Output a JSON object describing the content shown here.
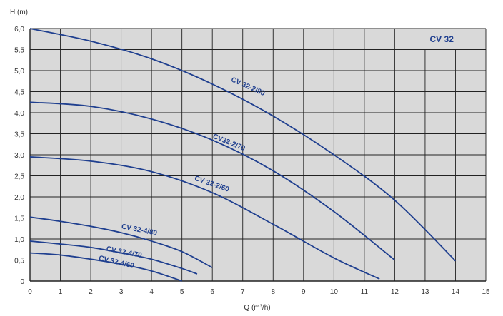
{
  "chart_data": {
    "type": "line",
    "xlabel": "Q (m³/h)",
    "ylabel": "H (m)",
    "xlim": [
      0,
      15
    ],
    "ylim": [
      0,
      6
    ],
    "x_ticks": [
      "0",
      "1",
      "2",
      "3",
      "4",
      "5",
      "6",
      "7",
      "8",
      "9",
      "10",
      "11",
      "12",
      "13",
      "14",
      "15"
    ],
    "y_ticks": [
      "0",
      "0,5",
      "1,0",
      "1,5",
      "2,0",
      "2,5",
      "3,0",
      "3,5",
      "4,0",
      "4,5",
      "5,0",
      "5,5",
      "6,0"
    ],
    "grid": true,
    "box_label": "CV 32",
    "colors": {
      "plot_bg": "#d9d9d9",
      "grid": "#222222",
      "curve": "#1f3f8f",
      "text": "#333333"
    },
    "series": [
      {
        "name": "CV 32-2/80",
        "x": [
          0,
          2,
          4,
          6,
          8,
          10,
          12,
          14
        ],
        "y": [
          6.0,
          5.7,
          5.28,
          4.68,
          3.92,
          3.0,
          1.92,
          0.48
        ]
      },
      {
        "name": "CV32-2/70",
        "x": [
          0,
          2,
          4,
          6,
          8,
          10,
          12
        ],
        "y": [
          4.25,
          4.15,
          3.85,
          3.35,
          2.62,
          1.65,
          0.5
        ]
      },
      {
        "name": "CV 32-2/60",
        "x": [
          0,
          2,
          4,
          6,
          8,
          10,
          11.5
        ],
        "y": [
          2.95,
          2.85,
          2.6,
          2.1,
          1.35,
          0.55,
          0.05
        ]
      },
      {
        "name": "CV 32-4/80",
        "x": [
          0,
          1,
          2,
          3,
          4,
          5,
          6
        ],
        "y": [
          1.52,
          1.42,
          1.3,
          1.15,
          0.95,
          0.7,
          0.32
        ]
      },
      {
        "name": "CV 32-4/70",
        "x": [
          0,
          1,
          2,
          3,
          4,
          5,
          5.5
        ],
        "y": [
          0.95,
          0.88,
          0.8,
          0.67,
          0.52,
          0.3,
          0.17
        ]
      },
      {
        "name": "CV 32-4/60",
        "x": [
          0,
          1,
          2,
          3,
          4,
          5
        ],
        "y": [
          0.67,
          0.62,
          0.52,
          0.4,
          0.24,
          0.0
        ]
      }
    ]
  }
}
